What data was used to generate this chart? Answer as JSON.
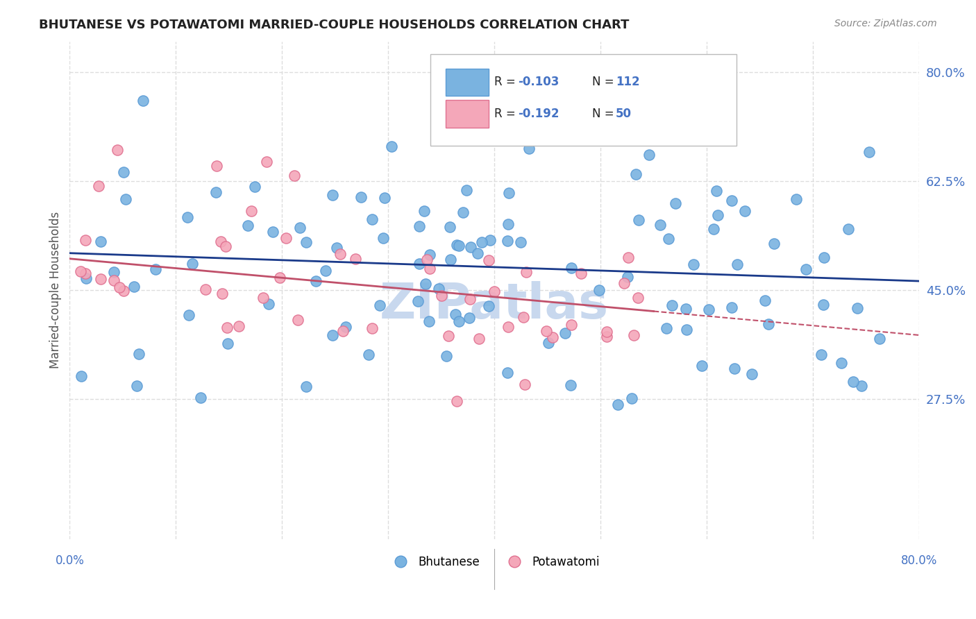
{
  "title": "BHUTANESE VS POTAWATOMI MARRIED-COUPLE HOUSEHOLDS CORRELATION CHART",
  "source_text": "Source: ZipAtlas.com",
  "ylabel": "Married-couple Households",
  "yticks": [
    0.275,
    0.45,
    0.625,
    0.8
  ],
  "ytick_labels": [
    "27.5%",
    "45.0%",
    "62.5%",
    "80.0%"
  ],
  "xmin": 0.0,
  "xmax": 0.8,
  "ymin": 0.05,
  "ymax": 0.85,
  "blue_R": -0.103,
  "blue_N": 112,
  "pink_R": -0.192,
  "pink_N": 50,
  "blue_color": "#7ab3e0",
  "blue_edge": "#5b9bd5",
  "pink_color": "#f4a7b9",
  "pink_edge": "#e07090",
  "trend_blue_color": "#1a3a8a",
  "trend_pink_color": "#c0506a",
  "watermark_color": "#c8d8ee",
  "background_color": "#ffffff",
  "grid_color": "#dddddd",
  "title_color": "#222222",
  "stat_color": "#4472c4"
}
